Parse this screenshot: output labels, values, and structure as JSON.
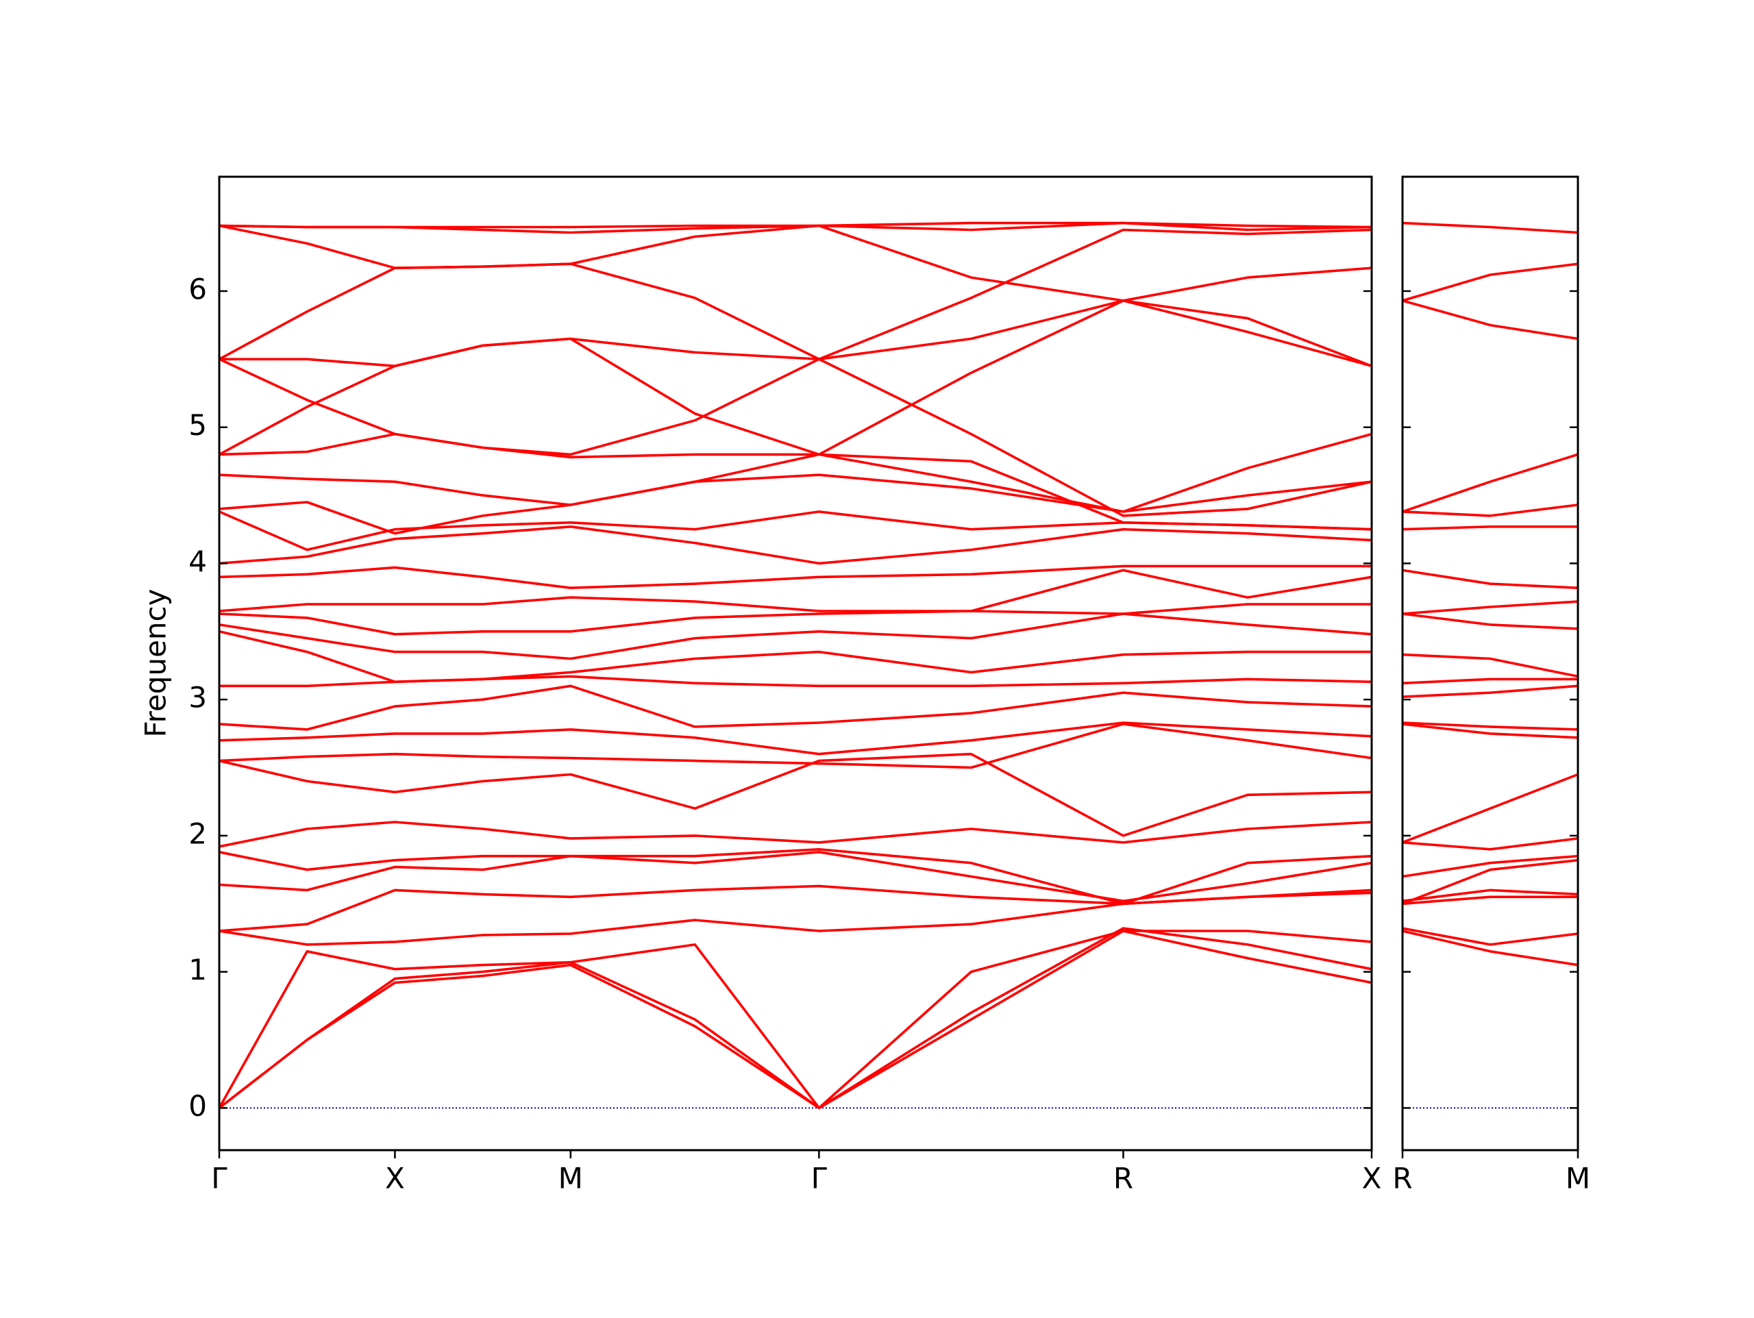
{
  "chart_data": [
    {
      "type": "line",
      "ylabel": "Frequency",
      "color": "#ff0000",
      "zero_line_color": "#0000cc",
      "ylim": [
        -0.31,
        6.84
      ],
      "yticks": [
        0,
        1,
        2,
        3,
        4,
        5,
        6
      ],
      "xlim": [
        0,
        3.28
      ],
      "xticks": [
        {
          "value": 0,
          "label": "Γ"
        },
        {
          "value": 0.5,
          "label": "X"
        },
        {
          "value": 1.0,
          "label": "M"
        },
        {
          "value": 1.707,
          "label": "Γ"
        },
        {
          "value": 2.573,
          "label": "R"
        },
        {
          "value": 3.28,
          "label": "X"
        }
      ],
      "x": [
        0,
        0.25,
        0.5,
        0.75,
        1.0,
        1.354,
        1.707,
        2.14,
        2.573,
        2.927,
        3.28
      ],
      "bands": [
        [
          0,
          0.5,
          0.92,
          0.97,
          1.05,
          0.6,
          0,
          0.65,
          1.3,
          1.1,
          0.92
        ],
        [
          0,
          0.5,
          0.95,
          1.0,
          1.07,
          0.65,
          0,
          0.7,
          1.32,
          1.2,
          1.02
        ],
        [
          0,
          1.15,
          1.02,
          1.05,
          1.07,
          1.2,
          0,
          1.0,
          1.3,
          1.3,
          1.22
        ],
        [
          1.3,
          1.2,
          1.22,
          1.27,
          1.28,
          1.38,
          1.3,
          1.35,
          1.5,
          1.55,
          1.58
        ],
        [
          1.3,
          1.35,
          1.6,
          1.57,
          1.55,
          1.6,
          1.63,
          1.55,
          1.5,
          1.55,
          1.6
        ],
        [
          1.64,
          1.6,
          1.77,
          1.75,
          1.85,
          1.8,
          1.88,
          1.7,
          1.52,
          1.65,
          1.8
        ],
        [
          1.88,
          1.75,
          1.82,
          1.85,
          1.85,
          1.85,
          1.9,
          1.8,
          1.5,
          1.8,
          1.85
        ],
        [
          1.92,
          2.05,
          2.1,
          2.05,
          1.98,
          2.0,
          1.95,
          2.05,
          1.95,
          2.05,
          2.1
        ],
        [
          2.55,
          2.4,
          2.32,
          2.4,
          2.45,
          2.2,
          2.55,
          2.6,
          2.0,
          2.3,
          2.32
        ],
        [
          2.55,
          2.58,
          2.6,
          2.58,
          2.57,
          2.55,
          2.53,
          2.5,
          2.82,
          2.7,
          2.57
        ],
        [
          2.7,
          2.72,
          2.75,
          2.75,
          2.78,
          2.72,
          2.6,
          2.7,
          2.83,
          2.78,
          2.73
        ],
        [
          2.82,
          2.78,
          2.95,
          3.0,
          3.1,
          2.8,
          2.83,
          2.9,
          3.05,
          2.98,
          2.95
        ],
        [
          3.1,
          3.1,
          3.13,
          3.15,
          3.17,
          3.12,
          3.1,
          3.1,
          3.12,
          3.15,
          3.13
        ],
        [
          3.5,
          3.35,
          3.13,
          3.15,
          3.2,
          3.3,
          3.35,
          3.2,
          3.33,
          3.35,
          3.35
        ],
        [
          3.55,
          3.45,
          3.35,
          3.35,
          3.3,
          3.45,
          3.5,
          3.45,
          3.63,
          3.55,
          3.48
        ],
        [
          3.63,
          3.6,
          3.48,
          3.5,
          3.5,
          3.6,
          3.63,
          3.65,
          3.63,
          3.7,
          3.7
        ],
        [
          3.65,
          3.7,
          3.7,
          3.7,
          3.75,
          3.72,
          3.65,
          3.65,
          3.95,
          3.75,
          3.9
        ],
        [
          3.9,
          3.92,
          3.97,
          3.9,
          3.82,
          3.85,
          3.9,
          3.92,
          3.98,
          3.98,
          3.98
        ],
        [
          4.0,
          4.05,
          4.18,
          4.22,
          4.27,
          4.15,
          4.0,
          4.1,
          4.25,
          4.22,
          4.17
        ],
        [
          4.38,
          4.1,
          4.25,
          4.28,
          4.3,
          4.25,
          4.38,
          4.25,
          4.3,
          4.28,
          4.25
        ],
        [
          4.4,
          4.45,
          4.22,
          4.35,
          4.43,
          4.6,
          4.65,
          4.55,
          4.38,
          4.5,
          4.6
        ],
        [
          4.65,
          4.62,
          4.6,
          4.5,
          4.43,
          4.6,
          4.8,
          4.6,
          4.38,
          4.7,
          4.95
        ],
        [
          4.8,
          4.82,
          4.95,
          4.85,
          4.78,
          4.8,
          4.8,
          4.75,
          4.3,
          4.28,
          4.25
        ],
        [
          4.8,
          5.15,
          5.45,
          5.6,
          5.65,
          5.1,
          4.8,
          5.4,
          5.93,
          6.1,
          6.17
        ],
        [
          5.5,
          5.5,
          5.45,
          5.6,
          5.65,
          5.55,
          5.5,
          5.65,
          5.93,
          5.7,
          5.45
        ],
        [
          5.5,
          5.2,
          4.95,
          4.85,
          4.8,
          5.05,
          5.5,
          5.95,
          6.45,
          6.42,
          6.45
        ],
        [
          5.5,
          5.85,
          6.17,
          6.18,
          6.2,
          5.95,
          5.5,
          4.95,
          4.35,
          4.4,
          4.6
        ],
        [
          6.48,
          6.35,
          6.17,
          6.18,
          6.2,
          6.4,
          6.48,
          6.1,
          5.93,
          5.8,
          5.45
        ],
        [
          6.48,
          6.47,
          6.47,
          6.45,
          6.43,
          6.46,
          6.48,
          6.45,
          6.5,
          6.48,
          6.47
        ],
        [
          6.48,
          6.47,
          6.47,
          6.47,
          6.47,
          6.48,
          6.48,
          6.5,
          6.5,
          6.45,
          6.47
        ]
      ]
    },
    {
      "type": "line",
      "color": "#ff0000",
      "zero_line_color": "#0000cc",
      "ylim": [
        -0.31,
        6.84
      ],
      "yticks": [
        0,
        1,
        2,
        3,
        4,
        5,
        6
      ],
      "xlim": [
        0,
        0.5
      ],
      "xticks": [
        {
          "value": 0,
          "label": "R"
        },
        {
          "value": 0.5,
          "label": "M"
        }
      ],
      "x": [
        0,
        0.25,
        0.5
      ],
      "bands": [
        [
          1.3,
          1.15,
          1.05
        ],
        [
          1.32,
          1.2,
          1.28
        ],
        [
          1.5,
          1.55,
          1.55
        ],
        [
          1.52,
          1.6,
          1.57
        ],
        [
          1.5,
          1.75,
          1.82
        ],
        [
          1.7,
          1.8,
          1.85
        ],
        [
          1.95,
          1.9,
          1.98
        ],
        [
          1.95,
          2.2,
          2.45
        ],
        [
          2.82,
          2.75,
          2.72
        ],
        [
          2.83,
          2.8,
          2.78
        ],
        [
          3.02,
          3.05,
          3.1
        ],
        [
          3.12,
          3.15,
          3.15
        ],
        [
          3.33,
          3.3,
          3.17
        ],
        [
          3.63,
          3.55,
          3.52
        ],
        [
          3.63,
          3.68,
          3.72
        ],
        [
          3.95,
          3.85,
          3.82
        ],
        [
          4.25,
          4.27,
          4.27
        ],
        [
          4.38,
          4.35,
          4.43
        ],
        [
          4.38,
          4.6,
          4.8
        ],
        [
          5.93,
          5.75,
          5.65
        ],
        [
          5.93,
          6.12,
          6.2
        ],
        [
          6.5,
          6.47,
          6.43
        ]
      ]
    }
  ]
}
